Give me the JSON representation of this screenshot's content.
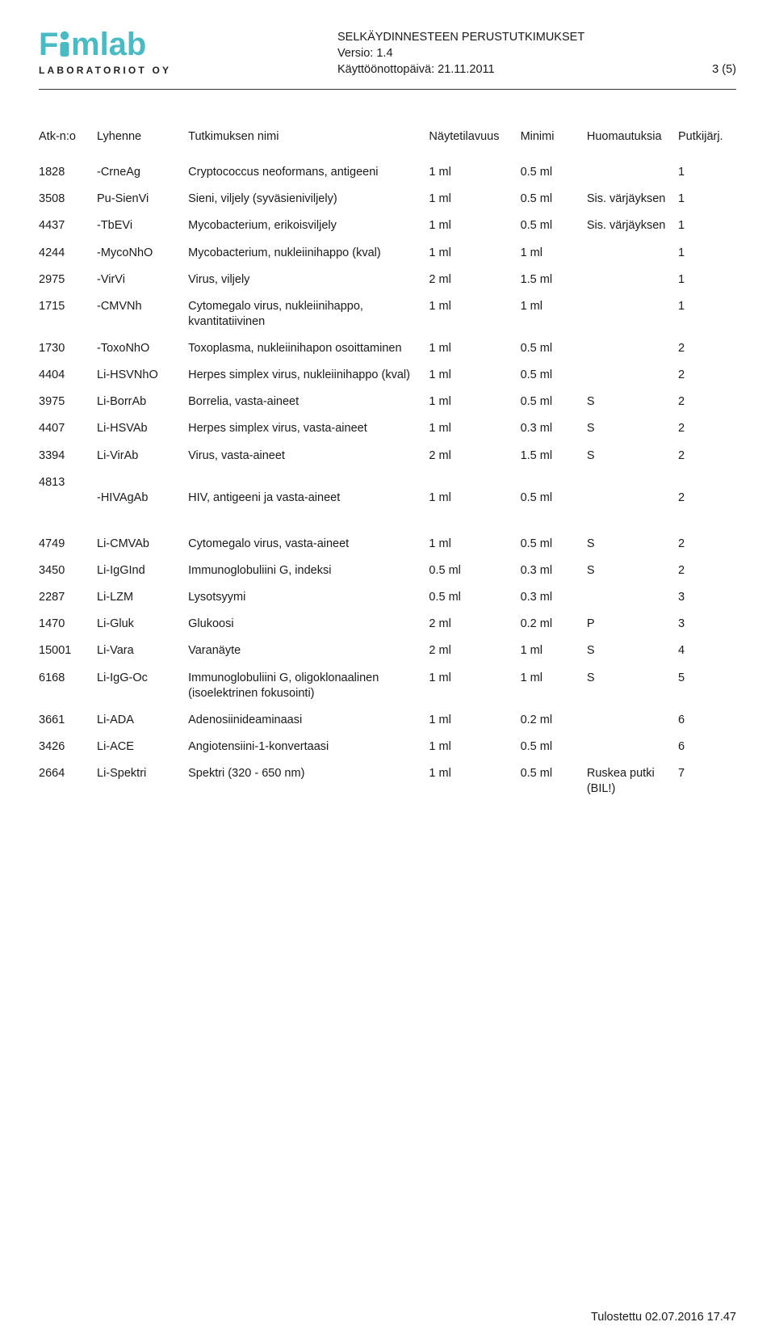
{
  "colors": {
    "brand": "#4bbac3",
    "text": "#1a1a1a",
    "rule": "#333333"
  },
  "logo": {
    "wordmark_prefix": "F",
    "wordmark_suffix": "mlab",
    "subtext": "LABORATORIOT OY"
  },
  "header": {
    "title": "SELKÄYDINNESTEEN PERUSTUTKIMUKSET",
    "version_label": "Versio: 1.4",
    "date_label": "Käyttöönottopäivä: 21.11.2011",
    "page": "3 (5)"
  },
  "columns": [
    "Atk-n:o",
    "Lyhenne",
    "Tutkimuksen nimi",
    "Näytetilavuus",
    "Minimi",
    "Huomautuksia",
    "Putkijärj."
  ],
  "block1": [
    {
      "atk": "1828",
      "lyh": "-CrneAg",
      "nimi": "Cryptococcus neoformans, antigeeni",
      "nayte": "1 ml",
      "min": "0.5 ml",
      "huom": "",
      "put": "1"
    },
    {
      "atk": "3508",
      "lyh": "Pu-SienVi",
      "nimi": "Sieni, viljely (syväsieniviljely)",
      "nayte": "1 ml",
      "min": "0.5 ml",
      "huom": "Sis. värjäyksen",
      "put": "1"
    },
    {
      "atk": "4437",
      "lyh": "-TbEVi",
      "nimi": "Mycobacterium, erikoisviljely",
      "nayte": "1 ml",
      "min": "0.5 ml",
      "huom": "Sis. värjäyksen",
      "put": "1"
    },
    {
      "atk": "4244",
      "lyh": "-MycoNhO",
      "nimi": "Mycobacterium, nukleiinihappo (kval)",
      "nayte": "1 ml",
      "min": "1 ml",
      "huom": "",
      "put": "1"
    },
    {
      "atk": "2975",
      "lyh": "-VirVi",
      "nimi": "Virus, viljely",
      "nayte": "2 ml",
      "min": "1.5 ml",
      "huom": "",
      "put": "1"
    },
    {
      "atk": "1715",
      "lyh": "-CMVNh",
      "nimi": "Cytomegalo virus, nukleiinihappo, kvantitatiivinen",
      "nayte": "1 ml",
      "min": "1 ml",
      "huom": "",
      "put": "1"
    },
    {
      "atk": "1730",
      "lyh": "-ToxoNhO",
      "nimi": "Toxoplasma, nukleiinihapon osoittaminen",
      "nayte": "1 ml",
      "min": "0.5 ml",
      "huom": "",
      "put": "2"
    },
    {
      "atk": "4404",
      "lyh": "Li-HSVNhO",
      "nimi": "Herpes simplex virus, nukleiinihappo (kval)",
      "nayte": "1 ml",
      "min": "0.5 ml",
      "huom": "",
      "put": "2"
    },
    {
      "atk": "3975",
      "lyh": "Li-BorrAb",
      "nimi": "Borrelia, vasta-aineet",
      "nayte": "1 ml",
      "min": "0.5 ml",
      "huom": "S",
      "put": "2"
    },
    {
      "atk": "4407",
      "lyh": "Li-HSVAb",
      "nimi": "Herpes simplex virus, vasta-aineet",
      "nayte": "1 ml",
      "min": "0.3 ml",
      "huom": "S",
      "put": "2"
    },
    {
      "atk": "3394",
      "lyh": "Li-VirAb",
      "nimi": "Virus, vasta-aineet",
      "nayte": "2 ml",
      "min": "1.5 ml",
      "huom": "S",
      "put": "2"
    },
    {
      "atk": "4813",
      "lyh": "-HIVAgAb",
      "nimi": "HIV, antigeeni ja vasta-aineet",
      "nayte": "1 ml",
      "min": "0.5 ml",
      "huom": "",
      "put": "2",
      "twoLine": true
    }
  ],
  "block2": [
    {
      "atk": "4749",
      "lyh": "Li-CMVAb",
      "nimi": "Cytomegalo virus, vasta-aineet",
      "nayte": "1 ml",
      "min": "0.5 ml",
      "huom": "S",
      "put": "2"
    },
    {
      "atk": "3450",
      "lyh": "Li-IgGInd",
      "nimi": "Immunoglobuliini G, indeksi",
      "nayte": "0.5 ml",
      "min": "0.3 ml",
      "huom": "S",
      "put": "2"
    },
    {
      "atk": "2287",
      "lyh": "Li-LZM",
      "nimi": "Lysotsyymi",
      "nayte": "0.5 ml",
      "min": "0.3 ml",
      "huom": "",
      "put": "3"
    },
    {
      "atk": "1470",
      "lyh": "Li-Gluk",
      "nimi": "Glukoosi",
      "nayte": "2 ml",
      "min": "0.2 ml",
      "huom": "P",
      "put": "3"
    },
    {
      "atk": "15001",
      "lyh": "Li-Vara",
      "nimi": "Varanäyte",
      "nayte": "2 ml",
      "min": "1 ml",
      "huom": "S",
      "put": "4"
    },
    {
      "atk": "6168",
      "lyh": "Li-IgG-Oc",
      "nimi": "Immunoglobuliini G, oligoklonaalinen (isoelektrinen fokusointi)",
      "nayte": "1 ml",
      "min": "1 ml",
      "huom": "S",
      "put": "5"
    },
    {
      "atk": "3661",
      "lyh": "Li-ADA",
      "nimi": "Adenosiinideaminaasi",
      "nayte": "1 ml",
      "min": "0.2 ml",
      "huom": "",
      "put": "6"
    },
    {
      "atk": "3426",
      "lyh": "Li-ACE",
      "nimi": "Angiotensiini-1-konvertaasi",
      "nayte": "1 ml",
      "min": "0.5 ml",
      "huom": "",
      "put": "6"
    },
    {
      "atk": "2664",
      "lyh": "Li-Spektri",
      "nimi": "Spektri (320 - 650 nm)",
      "nayte": "1 ml",
      "min": "0.5 ml",
      "huom": "Ruskea putki (BIL!)",
      "put": "7"
    }
  ],
  "footer": "Tulostettu 02.07.2016 17.47"
}
